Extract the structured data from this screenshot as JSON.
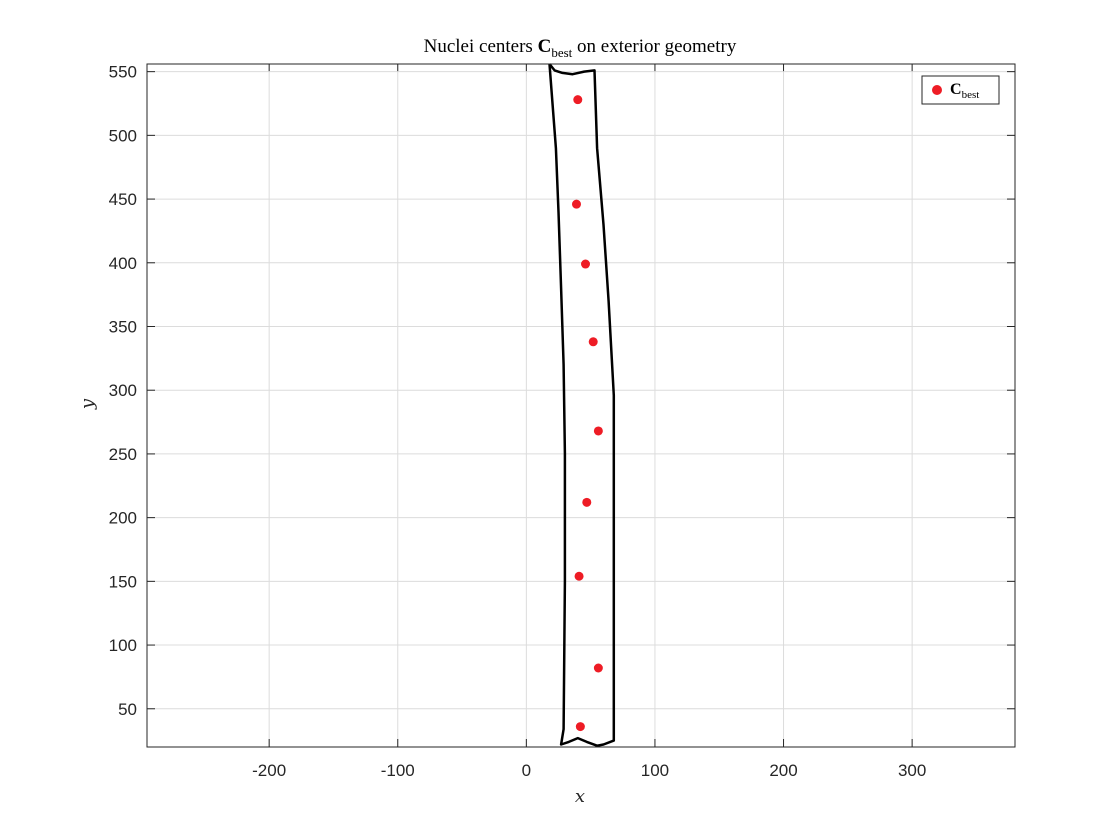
{
  "chart_data": {
    "type": "scatter",
    "title": {
      "prefix": "Nuclei centers ",
      "symbol": "C",
      "subscript": "best",
      "suffix": " on exterior geometry"
    },
    "xlabel": "x",
    "ylabel": "y",
    "xlim": [
      -295,
      380
    ],
    "ylim": [
      20,
      556
    ],
    "xticks": [
      -200,
      -100,
      0,
      100,
      200,
      300
    ],
    "yticks": [
      50,
      100,
      150,
      200,
      250,
      300,
      350,
      400,
      450,
      500,
      550
    ],
    "xtick_labels": [
      "-200",
      "-100",
      "0",
      "100",
      "200",
      "300"
    ],
    "ytick_labels": [
      "50",
      "100",
      "150",
      "200",
      "250",
      "300",
      "350",
      "400",
      "450",
      "500",
      "550"
    ],
    "grid": true,
    "legend": {
      "position": "top-right",
      "entries": [
        {
          "symbol": "C",
          "subscript": "best"
        }
      ]
    },
    "series": [
      {
        "name": "C_best",
        "color": "#ee1c25",
        "marker": "circle",
        "points": [
          {
            "x": 40,
            "y": 528
          },
          {
            "x": 39,
            "y": 446
          },
          {
            "x": 46,
            "y": 399
          },
          {
            "x": 52,
            "y": 338
          },
          {
            "x": 56,
            "y": 268
          },
          {
            "x": 47,
            "y": 212
          },
          {
            "x": 41,
            "y": 154
          },
          {
            "x": 56,
            "y": 82
          },
          {
            "x": 42,
            "y": 36
          }
        ]
      }
    ],
    "outline": {
      "color": "#000000",
      "points": [
        {
          "x": 18,
          "y": 556
        },
        {
          "x": 22,
          "y": 551
        },
        {
          "x": 28,
          "y": 549
        },
        {
          "x": 36,
          "y": 548
        },
        {
          "x": 45,
          "y": 550
        },
        {
          "x": 53,
          "y": 551
        },
        {
          "x": 55,
          "y": 490
        },
        {
          "x": 60,
          "y": 430
        },
        {
          "x": 64,
          "y": 370
        },
        {
          "x": 68,
          "y": 296
        },
        {
          "x": 68,
          "y": 25
        },
        {
          "x": 60,
          "y": 22
        },
        {
          "x": 55,
          "y": 21
        },
        {
          "x": 47,
          "y": 24
        },
        {
          "x": 40,
          "y": 27
        },
        {
          "x": 33,
          "y": 24
        },
        {
          "x": 27,
          "y": 22
        },
        {
          "x": 29,
          "y": 34
        },
        {
          "x": 30,
          "y": 150
        },
        {
          "x": 30,
          "y": 250
        },
        {
          "x": 29,
          "y": 320
        },
        {
          "x": 27,
          "y": 380
        },
        {
          "x": 25,
          "y": 440
        },
        {
          "x": 23,
          "y": 490
        },
        {
          "x": 18,
          "y": 556
        }
      ]
    }
  }
}
